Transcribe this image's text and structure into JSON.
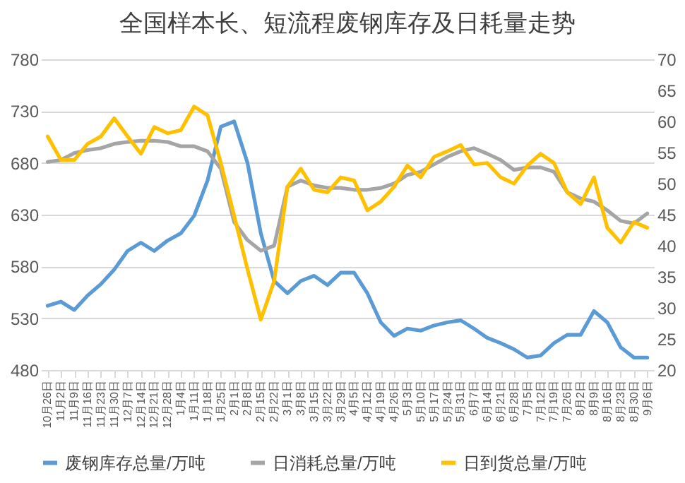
{
  "chart_data": {
    "type": "line",
    "title": "全国样本长、短流程废钢库存及日耗量走势",
    "categories": [
      "10月26日",
      "11月2日",
      "11月9日",
      "11月16日",
      "11月23日",
      "11月30日",
      "12月7日",
      "12月14日",
      "12月21日",
      "12月28日",
      "1月4日",
      "1月11日",
      "1月18日",
      "1月25日",
      "2月1日",
      "2月8日",
      "2月15日",
      "2月22日",
      "3月1日",
      "3月8日",
      "3月15日",
      "3月22日",
      "3月29日",
      "4月5日",
      "4月12日",
      "4月19日",
      "4月26日",
      "5月3日",
      "5月10日",
      "5月17日",
      "5月24日",
      "5月31日",
      "6月7日",
      "6月14日",
      "6月21日",
      "6月28日",
      "7月5日",
      "7月12日",
      "7月19日",
      "7月26日",
      "8月2日",
      "8月9日",
      "8月16日",
      "8月23日",
      "8月30日",
      "9月6日"
    ],
    "series": [
      {
        "name": "废钢库存总量/万吨",
        "color": "#5b9bd5",
        "values": [
          542,
          546,
          538,
          552,
          563,
          577,
          595,
          603,
          595,
          605,
          612,
          629,
          663,
          715,
          720,
          680,
          612,
          566,
          554,
          566,
          571,
          562,
          574,
          574,
          554,
          526,
          513,
          520,
          518,
          523,
          526,
          528,
          520,
          511,
          506,
          500,
          492,
          494,
          506,
          514,
          514,
          537,
          526,
          502,
          492,
          492
        ]
      },
      {
        "name": "日消耗总量/万吨",
        "color": "#a5a5a5",
        "axis": "y2",
        "values": [
          53.5,
          53.8,
          54.9,
          55.4,
          55.7,
          56.4,
          56.7,
          56.9,
          56.9,
          56.7,
          56.0,
          56.0,
          55.2,
          52.4,
          43.8,
          40.9,
          39.2,
          40.0,
          49.5,
          50.5,
          49.7,
          49.3,
          49.3,
          49.0,
          49.0,
          49.3,
          50.0,
          51.4,
          51.9,
          53.1,
          54.3,
          55.2,
          55.7,
          54.8,
          53.8,
          52.2,
          52.6,
          52.6,
          51.9,
          48.6,
          47.6,
          47.1,
          45.7,
          44.0,
          43.6,
          45.2
        ]
      },
      {
        "name": "日到货总量/万吨",
        "color": "#ffc000",
        "axis": "y2",
        "values": [
          57.6,
          53.8,
          53.8,
          56.4,
          57.6,
          60.5,
          57.6,
          54.8,
          59.1,
          58.1,
          58.6,
          62.4,
          61.0,
          53.3,
          44.8,
          36.2,
          28.1,
          34.3,
          49.5,
          52.4,
          49.0,
          48.6,
          51.0,
          50.5,
          45.7,
          47.1,
          49.5,
          52.9,
          51.0,
          54.3,
          55.2,
          56.2,
          53.1,
          53.3,
          51.0,
          50.0,
          52.9,
          54.8,
          53.3,
          48.6,
          46.7,
          51.0,
          42.9,
          40.5,
          43.8,
          42.9
        ]
      }
    ],
    "ylim": [
      480,
      780
    ],
    "yticks": [
      480,
      530,
      580,
      630,
      680,
      730,
      780
    ],
    "y2lim": [
      20,
      70
    ],
    "y2ticks": [
      20,
      25,
      30,
      35,
      40,
      45,
      50,
      55,
      60,
      65,
      70
    ],
    "grid": "y",
    "legend": "bottom",
    "marker": "none",
    "line_style": "solid"
  }
}
